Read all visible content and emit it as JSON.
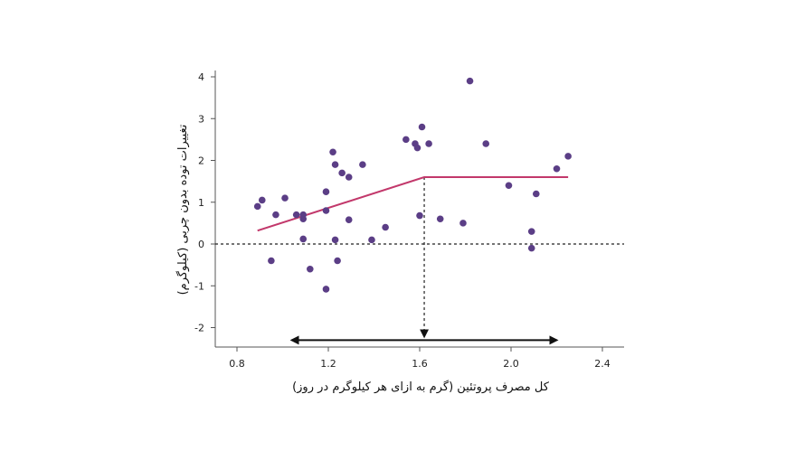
{
  "chart_data": {
    "type": "scatter",
    "title": "",
    "xlabel": "کل مصرف پروتئین (گرم به ازای هر کیلوگرم در روز)",
    "ylabel": "تغییرات توده بدون چربی (کیلوگرم)",
    "xlim": [
      0.72,
      2.5
    ],
    "ylim": [
      -2.4,
      4.2
    ],
    "x_ticks": [
      0.8,
      1.2,
      1.6,
      2.0,
      2.4
    ],
    "y_ticks": [
      4,
      3,
      2,
      1,
      0,
      -1,
      -2
    ],
    "grid": false,
    "legend": "none",
    "colors": {
      "points": "#5b3e86",
      "trend": "#c2386b",
      "axes": "#555555",
      "annotation": "#111111"
    },
    "points": [
      {
        "x": 0.89,
        "y": 0.9
      },
      {
        "x": 0.91,
        "y": 1.05
      },
      {
        "x": 0.95,
        "y": -0.4
      },
      {
        "x": 0.97,
        "y": 0.7
      },
      {
        "x": 1.01,
        "y": 1.1
      },
      {
        "x": 1.06,
        "y": 0.7
      },
      {
        "x": 1.09,
        "y": 0.6
      },
      {
        "x": 1.09,
        "y": 0.12
      },
      {
        "x": 1.09,
        "y": 0.7
      },
      {
        "x": 1.12,
        "y": -0.6
      },
      {
        "x": 1.19,
        "y": 0.8
      },
      {
        "x": 1.19,
        "y": 1.25
      },
      {
        "x": 1.19,
        "y": -1.08
      },
      {
        "x": 1.22,
        "y": 2.2
      },
      {
        "x": 1.23,
        "y": 1.9
      },
      {
        "x": 1.23,
        "y": 0.1
      },
      {
        "x": 1.24,
        "y": -0.4
      },
      {
        "x": 1.26,
        "y": 1.7
      },
      {
        "x": 1.29,
        "y": 1.6
      },
      {
        "x": 1.29,
        "y": 0.58
      },
      {
        "x": 1.35,
        "y": 1.9
      },
      {
        "x": 1.39,
        "y": 0.1
      },
      {
        "x": 1.45,
        "y": 0.4
      },
      {
        "x": 1.54,
        "y": 2.5
      },
      {
        "x": 1.58,
        "y": 2.4
      },
      {
        "x": 1.59,
        "y": 2.3
      },
      {
        "x": 1.6,
        "y": 0.68
      },
      {
        "x": 1.61,
        "y": 2.8
      },
      {
        "x": 1.64,
        "y": 2.4
      },
      {
        "x": 1.69,
        "y": 0.6
      },
      {
        "x": 1.79,
        "y": 0.5
      },
      {
        "x": 1.82,
        "y": 3.9
      },
      {
        "x": 1.89,
        "y": 2.4
      },
      {
        "x": 1.99,
        "y": 1.4
      },
      {
        "x": 2.09,
        "y": 0.3
      },
      {
        "x": 2.09,
        "y": -0.1
      },
      {
        "x": 2.11,
        "y": 1.2
      },
      {
        "x": 2.2,
        "y": 1.8
      },
      {
        "x": 2.25,
        "y": 2.1
      }
    ],
    "trend_line": [
      {
        "x": 0.89,
        "y": 0.32
      },
      {
        "x": 1.62,
        "y": 1.6
      },
      {
        "x": 2.25,
        "y": 1.6
      }
    ],
    "reference_line_y": 0,
    "breakpoint": {
      "x": 1.62,
      "y": 1.6
    },
    "range_arrow": {
      "x_start": 1.04,
      "x_end": 2.2,
      "y": -2.3
    }
  }
}
